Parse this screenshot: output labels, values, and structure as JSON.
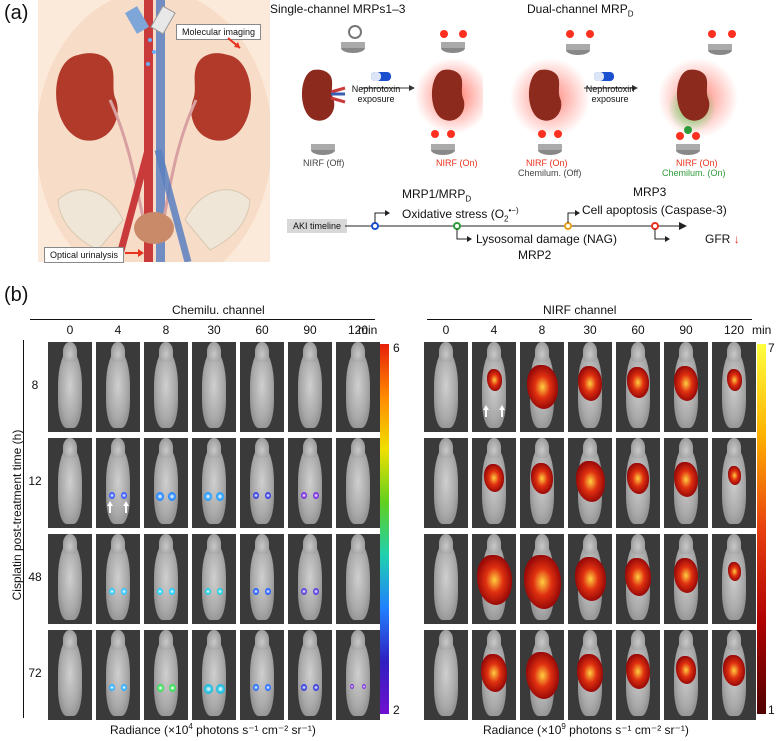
{
  "panel_a": {
    "label": "(a)",
    "title_single": "Single-channel MRPs1–3",
    "title_dual": "Dual-channel MRP",
    "title_dual_sub": "D",
    "molecular_imaging": "Molecular imaging",
    "optical_urinalysis": "Optical urinalysis",
    "nephrotoxin_1": "Nephrotoxin",
    "exposure_1": "exposure",
    "nephrotoxin_2": "Nephrotoxin",
    "exposure_2": "exposure",
    "nirf_off": "NIRF (Off)",
    "nirf_on_1": "NIRF (On)",
    "nirf_on_2": "NIRF (On)",
    "chemilum_off": "Chemilum. (Off)",
    "nirf_on_3": "NIRF (On)",
    "chemilum_on": "Chemilum. (On)",
    "aki_timeline": "AKI timeline",
    "event1_title": "MRP1/MRP",
    "event1_title_sub": "D",
    "event1_desc": "Oxidative stress (O",
    "event1_desc_tail": "•−)",
    "event2_desc": "Lysosomal damage (NAG)",
    "event2_title": "MRP2",
    "event3_title": "MRP3",
    "event3_desc": "Cell apoptosis (Caspase-3)",
    "event4_desc": "GFR",
    "event4_arrow": "↓",
    "colors": {
      "red": "#e8321e",
      "green": "#2e9b3a",
      "blue": "#1a4fd0",
      "orange": "#e8a21a"
    }
  },
  "panel_b": {
    "label": "(b)",
    "chemi_title": "Chemilu. channel",
    "nirf_title": "NIRF channel",
    "time_points": [
      "0",
      "4",
      "8",
      "30",
      "60",
      "90",
      "120"
    ],
    "time_unit": "min",
    "y_axis_label": "Cisplatin post-treatment time (h)",
    "rows": [
      "8",
      "12",
      "48",
      "72"
    ],
    "chemi_scale": {
      "max": "6",
      "min": "2"
    },
    "nirf_scale": {
      "max": "7",
      "min": "1"
    },
    "chemi_radiance_label": "Radiance (×10",
    "chemi_radiance_exp": "4",
    "nirf_radiance_label": "Radiance (×10",
    "nirf_radiance_exp": "9",
    "radiance_units": " photons s⁻¹ cm⁻² sr⁻¹)"
  }
}
